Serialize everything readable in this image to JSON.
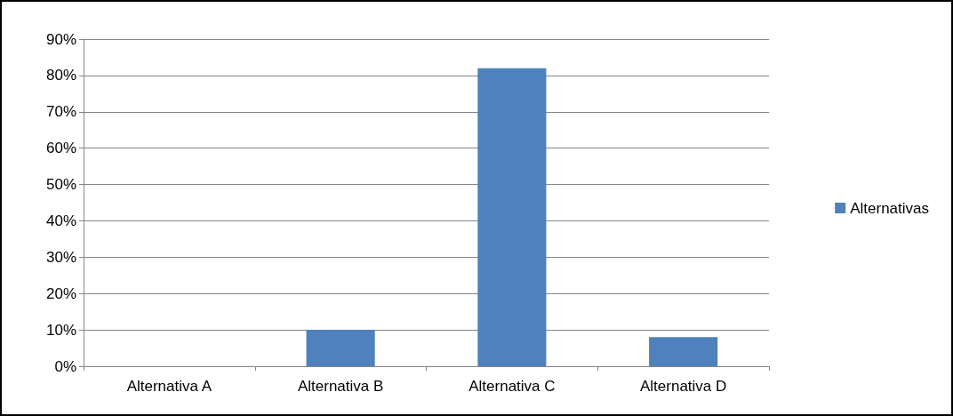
{
  "chart_data": {
    "type": "bar",
    "categories": [
      "Alternativa A",
      "Alternativa B",
      "Alternativa C",
      "Alternativa D"
    ],
    "series": [
      {
        "name": "Alternativas",
        "color": "#4f81bd",
        "values": [
          0,
          10,
          82,
          8
        ]
      }
    ],
    "ylim": [
      0,
      90
    ],
    "yticks": [
      {
        "value": 0,
        "label": "0%"
      },
      {
        "value": 10,
        "label": "10%"
      },
      {
        "value": 20,
        "label": "20%"
      },
      {
        "value": 30,
        "label": "30%"
      },
      {
        "value": 40,
        "label": "40%"
      },
      {
        "value": 50,
        "label": "50%"
      },
      {
        "value": 60,
        "label": "60%"
      },
      {
        "value": 70,
        "label": "70%"
      },
      {
        "value": 80,
        "label": "80%"
      },
      {
        "value": 90,
        "label": "90%"
      }
    ],
    "grid": "y",
    "legend": "right"
  }
}
